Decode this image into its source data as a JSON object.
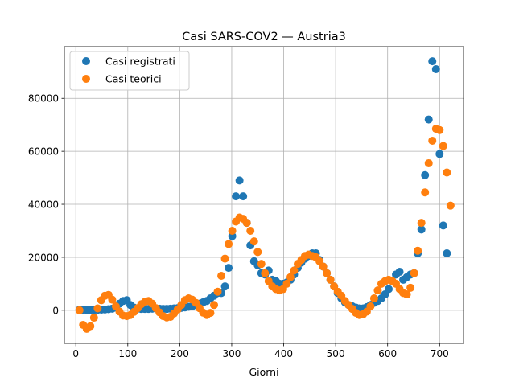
{
  "chart_data": {
    "type": "scatter",
    "title": "Casi SARS-COV2 — Austria3",
    "xlabel": "Giorni",
    "ylabel": "",
    "xlim": [
      -22,
      746
    ],
    "ylim": [
      -12500,
      99500
    ],
    "grid": true,
    "legend_position": "top-left",
    "x_ticks": [
      0,
      100,
      200,
      300,
      400,
      500,
      600,
      700
    ],
    "y_ticks": [
      0,
      20000,
      40000,
      60000,
      80000
    ],
    "y_tick_labels": [
      "0",
      "20000",
      "40000",
      "60000",
      "80000"
    ],
    "series": [
      {
        "name": "Casi registrati",
        "color": "#1f77b4",
        "points": [
          [
            7,
            200
          ],
          [
            14,
            150
          ],
          [
            21,
            100
          ],
          [
            28,
            100
          ],
          [
            35,
            150
          ],
          [
            42,
            200
          ],
          [
            49,
            250
          ],
          [
            56,
            300
          ],
          [
            63,
            400
          ],
          [
            70,
            600
          ],
          [
            77,
            1000
          ],
          [
            84,
            2500
          ],
          [
            91,
            3500
          ],
          [
            98,
            3800
          ],
          [
            105,
            2000
          ],
          [
            112,
            1000
          ],
          [
            119,
            600
          ],
          [
            126,
            500
          ],
          [
            133,
            500
          ],
          [
            140,
            500
          ],
          [
            147,
            600
          ],
          [
            154,
            700
          ],
          [
            161,
            600
          ],
          [
            168,
            500
          ],
          [
            175,
            500
          ],
          [
            182,
            600
          ],
          [
            189,
            700
          ],
          [
            196,
            800
          ],
          [
            203,
            900
          ],
          [
            210,
            1100
          ],
          [
            217,
            1300
          ],
          [
            224,
            1500
          ],
          [
            231,
            2000
          ],
          [
            238,
            2500
          ],
          [
            245,
            3000
          ],
          [
            252,
            3500
          ],
          [
            259,
            4500
          ],
          [
            266,
            5500
          ],
          [
            273,
            6500
          ],
          [
            280,
            6500
          ],
          [
            287,
            9000
          ],
          [
            294,
            16000
          ],
          [
            301,
            28000
          ],
          [
            308,
            43000
          ],
          [
            315,
            49000
          ],
          [
            322,
            43000
          ],
          [
            329,
            33000
          ],
          [
            336,
            24500
          ],
          [
            343,
            18500
          ],
          [
            350,
            17000
          ],
          [
            357,
            14000
          ],
          [
            364,
            13500
          ],
          [
            371,
            15000
          ],
          [
            378,
            11500
          ],
          [
            385,
            11000
          ],
          [
            392,
            10000
          ],
          [
            399,
            10000
          ],
          [
            406,
            10500
          ],
          [
            413,
            11500
          ],
          [
            420,
            13500
          ],
          [
            427,
            16000
          ],
          [
            434,
            18000
          ],
          [
            441,
            19500
          ],
          [
            448,
            20500
          ],
          [
            455,
            21500
          ],
          [
            462,
            21500
          ],
          [
            469,
            19000
          ],
          [
            476,
            16500
          ],
          [
            483,
            14000
          ],
          [
            490,
            11500
          ],
          [
            497,
            9000
          ],
          [
            504,
            6500
          ],
          [
            511,
            4500
          ],
          [
            518,
            3000
          ],
          [
            525,
            2000
          ],
          [
            532,
            1500
          ],
          [
            539,
            1000
          ],
          [
            546,
            700
          ],
          [
            553,
            700
          ],
          [
            560,
            1200
          ],
          [
            567,
            2000
          ],
          [
            574,
            2800
          ],
          [
            581,
            3500
          ],
          [
            588,
            4500
          ],
          [
            595,
            6000
          ],
          [
            602,
            8000
          ],
          [
            609,
            11000
          ],
          [
            616,
            13500
          ],
          [
            623,
            14500
          ],
          [
            630,
            11500
          ],
          [
            637,
            12500
          ],
          [
            644,
            13500
          ],
          [
            651,
            14000
          ],
          [
            658,
            21500
          ],
          [
            665,
            30500
          ],
          [
            672,
            51000
          ],
          [
            679,
            72000
          ],
          [
            686,
            94000
          ],
          [
            693,
            91000
          ],
          [
            700,
            59000
          ],
          [
            707,
            32000
          ],
          [
            714,
            21500
          ]
        ]
      },
      {
        "name": "Casi teorici",
        "color": "#ff7f0e",
        "points": [
          [
            7,
            0
          ],
          [
            14,
            -5500
          ],
          [
            21,
            -7000
          ],
          [
            28,
            -6000
          ],
          [
            35,
            -2800
          ],
          [
            42,
            700
          ],
          [
            49,
            3800
          ],
          [
            56,
            5500
          ],
          [
            63,
            5800
          ],
          [
            70,
            4000
          ],
          [
            77,
            1500
          ],
          [
            84,
            -500
          ],
          [
            91,
            -2000
          ],
          [
            98,
            -2200
          ],
          [
            105,
            -1800
          ],
          [
            112,
            -600
          ],
          [
            119,
            800
          ],
          [
            126,
            2300
          ],
          [
            133,
            3200
          ],
          [
            140,
            3500
          ],
          [
            147,
            2500
          ],
          [
            154,
            800
          ],
          [
            161,
            -800
          ],
          [
            168,
            -2200
          ],
          [
            175,
            -2700
          ],
          [
            182,
            -2500
          ],
          [
            189,
            -1200
          ],
          [
            196,
            300
          ],
          [
            203,
            2000
          ],
          [
            210,
            3800
          ],
          [
            217,
            4500
          ],
          [
            224,
            4000
          ],
          [
            231,
            2800
          ],
          [
            238,
            800
          ],
          [
            245,
            -900
          ],
          [
            252,
            -1800
          ],
          [
            259,
            -1000
          ],
          [
            266,
            2000
          ],
          [
            273,
            7000
          ],
          [
            280,
            13000
          ],
          [
            287,
            19500
          ],
          [
            294,
            25000
          ],
          [
            301,
            30000
          ],
          [
            308,
            33500
          ],
          [
            315,
            35000
          ],
          [
            322,
            34500
          ],
          [
            329,
            33000
          ],
          [
            336,
            30000
          ],
          [
            343,
            26000
          ],
          [
            350,
            22000
          ],
          [
            357,
            17500
          ],
          [
            364,
            14000
          ],
          [
            371,
            11000
          ],
          [
            378,
            9000
          ],
          [
            385,
            8000
          ],
          [
            392,
            7500
          ],
          [
            399,
            8000
          ],
          [
            406,
            10000
          ],
          [
            413,
            12500
          ],
          [
            420,
            15000
          ],
          [
            427,
            17500
          ],
          [
            434,
            19000
          ],
          [
            441,
            20500
          ],
          [
            448,
            21000
          ],
          [
            455,
            20500
          ],
          [
            462,
            20000
          ],
          [
            469,
            18500
          ],
          [
            476,
            16500
          ],
          [
            483,
            14000
          ],
          [
            490,
            11500
          ],
          [
            497,
            9000
          ],
          [
            504,
            7000
          ],
          [
            511,
            5500
          ],
          [
            518,
            3500
          ],
          [
            525,
            2000
          ],
          [
            532,
            500
          ],
          [
            539,
            -1000
          ],
          [
            546,
            -1800
          ],
          [
            553,
            -1500
          ],
          [
            560,
            -500
          ],
          [
            567,
            1500
          ],
          [
            574,
            4500
          ],
          [
            581,
            7500
          ],
          [
            588,
            10000
          ],
          [
            595,
            11000
          ],
          [
            602,
            11500
          ],
          [
            609,
            11000
          ],
          [
            616,
            10000
          ],
          [
            623,
            8000
          ],
          [
            630,
            6500
          ],
          [
            637,
            6000
          ],
          [
            644,
            8500
          ],
          [
            651,
            14000
          ],
          [
            658,
            22500
          ],
          [
            665,
            33000
          ],
          [
            672,
            44500
          ],
          [
            679,
            55500
          ],
          [
            686,
            64000
          ],
          [
            693,
            68500
          ],
          [
            700,
            68000
          ],
          [
            707,
            62000
          ],
          [
            714,
            52000
          ],
          [
            721,
            39500
          ]
        ]
      }
    ]
  }
}
